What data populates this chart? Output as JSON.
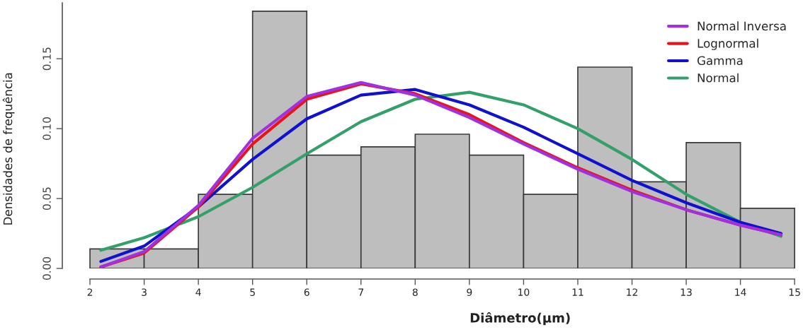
{
  "chart_data": {
    "type": "histogram",
    "xlabel": "Diâmetro(µm)",
    "ylabel": "Densidades de frequência",
    "bins": [
      2,
      3,
      4,
      5,
      6,
      7,
      8,
      9,
      10,
      11,
      12,
      13,
      14,
      15
    ],
    "values": [
      0.014,
      0.014,
      0.053,
      0.184,
      0.081,
      0.087,
      0.096,
      0.081,
      0.053,
      0.144,
      0.062,
      0.09,
      0.043
    ],
    "color": "#bebebe",
    "series": [
      {
        "name": "Normal Inversa",
        "type": "line",
        "color": "#a030e0",
        "x": [
          2.2,
          3,
          4,
          5,
          6,
          7,
          8,
          9,
          10,
          11,
          12,
          13,
          14,
          14.75
        ],
        "values": [
          0.001,
          0.012,
          0.045,
          0.093,
          0.123,
          0.133,
          0.124,
          0.108,
          0.089,
          0.071,
          0.055,
          0.042,
          0.031,
          0.024
        ]
      },
      {
        "name": "Lognormal",
        "type": "line",
        "color": "#e8141c",
        "x": [
          2.2,
          3,
          4,
          5,
          6,
          7,
          8,
          9,
          10,
          11,
          12,
          13,
          14,
          14.75
        ],
        "values": [
          0.001,
          0.011,
          0.044,
          0.089,
          0.121,
          0.132,
          0.125,
          0.11,
          0.09,
          0.072,
          0.056,
          0.042,
          0.031,
          0.024
        ]
      },
      {
        "name": "Gamma",
        "type": "line",
        "color": "#1010d0",
        "x": [
          2.2,
          3,
          4,
          5,
          6,
          7,
          8,
          9,
          10,
          11,
          12,
          13,
          14,
          14.75
        ],
        "values": [
          0.005,
          0.016,
          0.044,
          0.078,
          0.107,
          0.124,
          0.128,
          0.117,
          0.101,
          0.082,
          0.063,
          0.047,
          0.033,
          0.025
        ]
      },
      {
        "name": "Normal",
        "type": "line",
        "color": "#33a06a",
        "x": [
          2.2,
          3,
          4,
          5,
          6,
          7,
          8,
          9,
          10,
          11,
          12,
          13,
          14,
          14.75
        ],
        "values": [
          0.013,
          0.022,
          0.037,
          0.058,
          0.082,
          0.105,
          0.121,
          0.126,
          0.117,
          0.1,
          0.078,
          0.053,
          0.033,
          0.023
        ]
      }
    ],
    "xlim": [
      1.49,
      15.05
    ],
    "ylim": [
      0,
      0.19
    ],
    "xticks": [
      2,
      3,
      4,
      5,
      6,
      7,
      8,
      9,
      10,
      11,
      12,
      13,
      14,
      15
    ],
    "yticks": [
      {
        "value": 0,
        "label": "0.00"
      },
      {
        "value": 0.05,
        "label": "0.05"
      },
      {
        "value": 0.1,
        "label": "0.10"
      },
      {
        "value": 0.15,
        "label": "0.15"
      }
    ],
    "grid": false,
    "legend": "top right",
    "line_style": "solid",
    "marker": "none"
  }
}
